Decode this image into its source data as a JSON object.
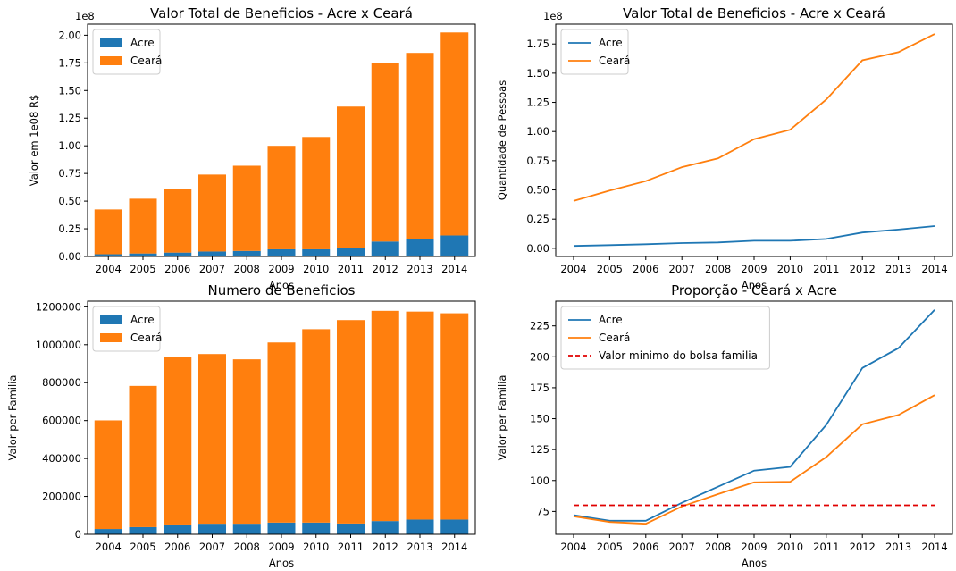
{
  "chart_data": [
    {
      "type": "bar",
      "stacked": true,
      "title": "Valor Total de Beneficios - Acre x Ceará",
      "xlabel": "Anos",
      "ylabel": "Valor em 1e08 R$",
      "offset_text": "1e8",
      "categories": [
        "2004",
        "2005",
        "2006",
        "2007",
        "2008",
        "2009",
        "2010",
        "2011",
        "2012",
        "2013",
        "2014"
      ],
      "ylim": [
        0,
        2.1
      ],
      "yticks": [
        0,
        0.25,
        0.5,
        0.75,
        1.0,
        1.25,
        1.5,
        1.75,
        2.0
      ],
      "ytick_labels": [
        "0.00",
        "0.25",
        "0.50",
        "0.75",
        "1.00",
        "1.25",
        "1.50",
        "1.75",
        "2.00"
      ],
      "legend_position": "top-left",
      "series": [
        {
          "name": "Acre",
          "color": "#1f77b4",
          "values": [
            0.02,
            0.027,
            0.035,
            0.045,
            0.05,
            0.065,
            0.065,
            0.08,
            0.135,
            0.16,
            0.19
          ]
        },
        {
          "name": "Ceará",
          "color": "#ff7f0e",
          "values": [
            0.405,
            0.495,
            0.575,
            0.695,
            0.77,
            0.935,
            1.015,
            1.275,
            1.61,
            1.68,
            1.835
          ]
        }
      ]
    },
    {
      "type": "line",
      "title": "Valor Total de Beneficios - Acre x Ceará",
      "xlabel": "Anos",
      "ylabel": "Quantidade de Pessoas",
      "offset_text": "1e8",
      "x": [
        "2004",
        "2005",
        "2006",
        "2007",
        "2008",
        "2009",
        "2010",
        "2011",
        "2012",
        "2013",
        "2014"
      ],
      "ylim": [
        -0.07,
        1.92
      ],
      "yticks": [
        0,
        0.25,
        0.5,
        0.75,
        1.0,
        1.25,
        1.5,
        1.75
      ],
      "ytick_labels": [
        "0.00",
        "0.25",
        "0.50",
        "0.75",
        "1.00",
        "1.25",
        "1.50",
        "1.75"
      ],
      "legend_position": "top-left",
      "series": [
        {
          "name": "Acre",
          "color": "#1f77b4",
          "values": [
            0.02,
            0.027,
            0.035,
            0.045,
            0.05,
            0.065,
            0.065,
            0.08,
            0.135,
            0.16,
            0.19
          ]
        },
        {
          "name": "Ceará",
          "color": "#ff7f0e",
          "values": [
            0.405,
            0.495,
            0.575,
            0.695,
            0.77,
            0.935,
            1.015,
            1.275,
            1.61,
            1.68,
            1.835
          ]
        }
      ]
    },
    {
      "type": "bar",
      "stacked": true,
      "title": "Numero de Beneficios",
      "xlabel": "Anos",
      "ylabel": "Valor per Familia",
      "offset_text": "",
      "categories": [
        "2004",
        "2005",
        "2006",
        "2007",
        "2008",
        "2009",
        "2010",
        "2011",
        "2012",
        "2013",
        "2014"
      ],
      "ylim": [
        0,
        1230000
      ],
      "yticks": [
        0,
        200000,
        400000,
        600000,
        800000,
        1000000,
        1200000
      ],
      "ytick_labels": [
        "0",
        "200000",
        "400000",
        "600000",
        "800000",
        "1000000",
        "1200000"
      ],
      "legend_position": "top-left",
      "series": [
        {
          "name": "Acre",
          "color": "#1f77b4",
          "values": [
            28000,
            38000,
            52000,
            56000,
            56000,
            62000,
            62000,
            57000,
            70000,
            78000,
            78000
          ]
        },
        {
          "name": "Ceará",
          "color": "#ff7f0e",
          "values": [
            573000,
            745000,
            885000,
            895000,
            867000,
            950000,
            1020000,
            1073000,
            1109000,
            1097000,
            1088000
          ]
        }
      ]
    },
    {
      "type": "line",
      "title": "Proporção - Ceará x Acre",
      "xlabel": "Anos",
      "ylabel": "Valor per Familia",
      "offset_text": "",
      "x": [
        "2004",
        "2005",
        "2006",
        "2007",
        "2008",
        "2009",
        "2010",
        "2011",
        "2012",
        "2013",
        "2014"
      ],
      "ylim": [
        56.5,
        245
      ],
      "yticks": [
        75,
        100,
        125,
        150,
        175,
        200,
        225
      ],
      "ytick_labels": [
        "75",
        "100",
        "125",
        "150",
        "175",
        "200",
        "225"
      ],
      "legend_position": "top-left",
      "series": [
        {
          "name": "Acre",
          "color": "#1f77b4",
          "dashed": false,
          "values": [
            72,
            67.5,
            67.5,
            82,
            95,
            108,
            111,
            145,
            191,
            207,
            238
          ]
        },
        {
          "name": "Ceará",
          "color": "#ff7f0e",
          "dashed": false,
          "values": [
            71,
            66.5,
            65,
            79,
            89,
            98.5,
            99,
            119,
            145.5,
            153,
            169
          ]
        },
        {
          "name": "Valor minimo do bolsa familia",
          "color": "#e00000",
          "dashed": true,
          "values": [
            80,
            80,
            80,
            80,
            80,
            80,
            80,
            80,
            80,
            80,
            80
          ]
        }
      ]
    }
  ]
}
